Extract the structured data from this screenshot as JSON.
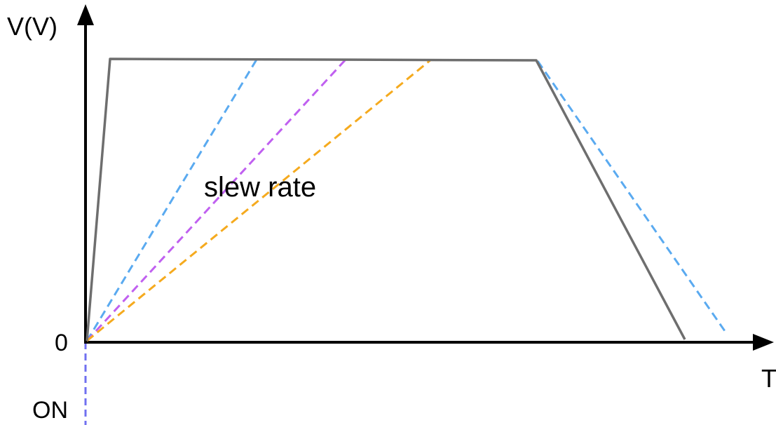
{
  "diagram": {
    "y_axis_label": "V(V)",
    "x_axis_label": "T",
    "origin_label": "0",
    "on_label": "ON",
    "annotation": "slew rate"
  },
  "colors": {
    "axis": "#000000",
    "output_waveform": "#6e6e6e",
    "blue_dashed": "#5aaaf0",
    "purple_dashed": "#c060f0",
    "orange_dashed": "#f5aa1e",
    "on_marker": "#7070f0",
    "text": "#000000"
  },
  "legend_items": []
}
